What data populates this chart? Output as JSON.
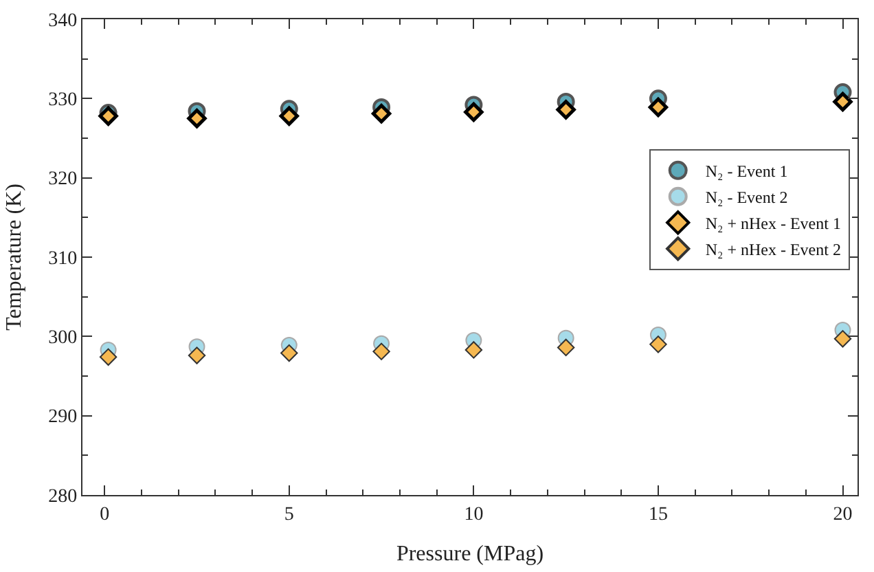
{
  "chart_data": {
    "type": "scatter",
    "xlabel": "Pressure (MPag)",
    "ylabel": "Temperature (K)",
    "x": [
      0.1,
      2.5,
      5,
      7.5,
      10,
      12.5,
      15,
      20
    ],
    "series": [
      {
        "name": "N₂ - Event 1",
        "color": "#5ea9b9",
        "marker": "circle",
        "values": [
          328.2,
          328.4,
          328.7,
          328.9,
          329.2,
          329.6,
          330.0,
          330.8
        ]
      },
      {
        "name": "N₂ - Event 2",
        "color": "#a6dbe9",
        "marker": "circle",
        "values": [
          298.3,
          298.7,
          298.9,
          299.1,
          299.5,
          299.8,
          300.2,
          300.8
        ]
      },
      {
        "name": "N₂ + nHex - Event 1",
        "color": "#f5b851",
        "marker": "diamond",
        "values": [
          327.8,
          327.5,
          327.8,
          328.1,
          328.3,
          328.6,
          328.9,
          329.6
        ]
      },
      {
        "name": "N₂ + nHex - Event 2",
        "color": "#f5b851",
        "marker": "diamond",
        "values": [
          297.4,
          297.6,
          297.9,
          298.1,
          298.3,
          298.6,
          299.0,
          299.7
        ]
      }
    ],
    "xlim": [
      -0.6,
      20.4
    ],
    "xticks": [
      0,
      5,
      10,
      15,
      20
    ],
    "ylim": [
      280,
      340
    ],
    "yticks": [
      280,
      290,
      300,
      310,
      320,
      330,
      340
    ],
    "legend": "right"
  }
}
